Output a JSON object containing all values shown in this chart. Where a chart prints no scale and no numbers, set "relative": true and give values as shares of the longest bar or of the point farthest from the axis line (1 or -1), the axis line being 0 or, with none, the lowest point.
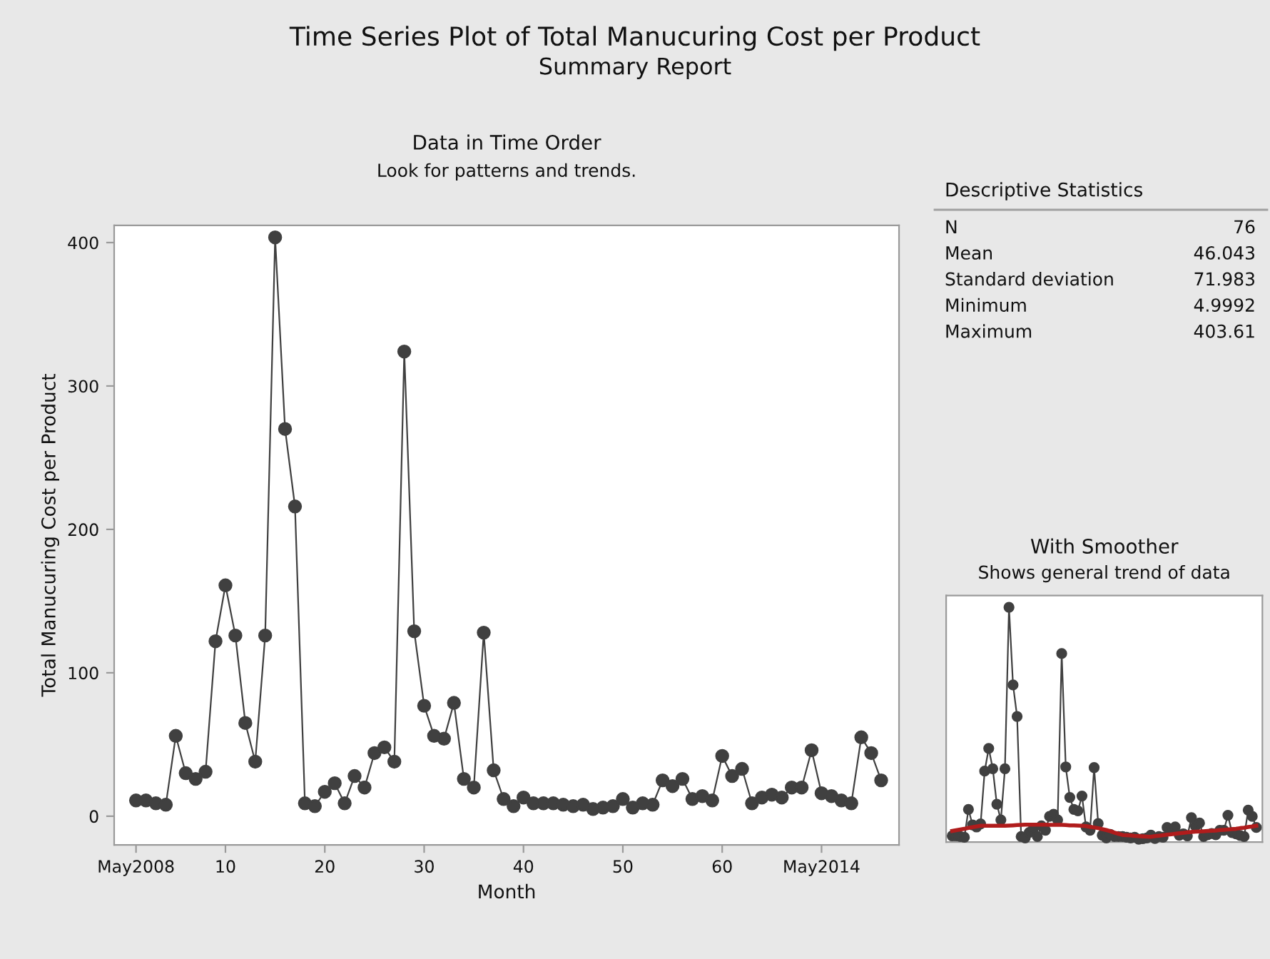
{
  "chart_data": [
    {
      "type": "other",
      "title": "Time Series Plot of Total Manucuring Cost per Product",
      "subtitle": "Summary Report"
    },
    {
      "type": "line",
      "title": "Data in Time Order",
      "subtitle": "Look for patterns and trends.",
      "xlabel": "Month",
      "ylabel": "Total Manucuring Cost per Product",
      "x": [
        1,
        2,
        3,
        4,
        5,
        6,
        7,
        8,
        9,
        10,
        11,
        12,
        13,
        14,
        15,
        16,
        17,
        18,
        19,
        20,
        21,
        22,
        23,
        24,
        25,
        26,
        27,
        28,
        29,
        30,
        31,
        32,
        33,
        34,
        35,
        36,
        37,
        38,
        39,
        40,
        41,
        42,
        43,
        44,
        45,
        46,
        47,
        48,
        49,
        50,
        51,
        52,
        53,
        54,
        55,
        56,
        57,
        58,
        59,
        60,
        61,
        62,
        63,
        64,
        65,
        66,
        67,
        68,
        69,
        70,
        71,
        72,
        73,
        74,
        75,
        76
      ],
      "series": [
        {
          "color": "#404040",
          "values": [
            11,
            11,
            9,
            8,
            56,
            30,
            26,
            31,
            122,
            161,
            126,
            65,
            38,
            126,
            403.61,
            270,
            216,
            9,
            7,
            17,
            23,
            9,
            28,
            20,
            44,
            48,
            38,
            324,
            129,
            77,
            56,
            54,
            79,
            26,
            20,
            128,
            32,
            12,
            7,
            13,
            9,
            9,
            9,
            8,
            7,
            8,
            5,
            6,
            7,
            12,
            6,
            9,
            8,
            25,
            21,
            26,
            12,
            14,
            11,
            42,
            28,
            33,
            9,
            13,
            15,
            13,
            20,
            20,
            46,
            16,
            14,
            11,
            9,
            55,
            44,
            25
          ]
        }
      ],
      "xlim": [
        -1.2,
        77.8
      ],
      "ylim": [
        -20,
        412
      ],
      "xticks": [
        {
          "value": 1,
          "label": "May2008"
        },
        10,
        20,
        30,
        40,
        50,
        60,
        {
          "value": 70,
          "label": "May2014"
        }
      ],
      "yticks": [
        0,
        100,
        200,
        300,
        400
      ],
      "marker": "circle",
      "line_style": "solid",
      "grid": false
    },
    {
      "type": "other",
      "title": "Descriptive Statistics",
      "annotations": [
        "N",
        "76",
        "Mean",
        "46.043",
        "Standard deviation",
        "71.983",
        "Minimum",
        "4.9992",
        "Maximum",
        "403.61"
      ]
    },
    {
      "type": "line",
      "title": "With Smoother",
      "subtitle": "Shows general trend of data",
      "relative": true,
      "grid": false,
      "categories": [
        null,
        null,
        null,
        null,
        null,
        null,
        null,
        null,
        null,
        null,
        null,
        null,
        null,
        null,
        null,
        null,
        null,
        null,
        null,
        null,
        null,
        null,
        null,
        null,
        null,
        null,
        null,
        null,
        null,
        null,
        null,
        null,
        null,
        null,
        null,
        null,
        null,
        null,
        null,
        null,
        null,
        null,
        null,
        null,
        null,
        null,
        null,
        null,
        null,
        null,
        null,
        null,
        null,
        null,
        null,
        null,
        null,
        null,
        null,
        null,
        null,
        null,
        null,
        null,
        null,
        null,
        null,
        null,
        null,
        null,
        null,
        null,
        null,
        null,
        null,
        null
      ],
      "series": [
        {
          "color": "#404040",
          "marker": "circle",
          "values": [
            0.026,
            0.026,
            0.023,
            0.02,
            0.139,
            0.073,
            0.064,
            0.077,
            0.302,
            0.399,
            0.312,
            0.161,
            0.094,
            0.312,
            1,
            0.669,
            0.535,
            0.023,
            0.017,
            0.041,
            0.056,
            0.023,
            0.069,
            0.05,
            0.109,
            0.118,
            0.094,
            0.803,
            0.32,
            0.19,
            0.139,
            0.133,
            0.196,
            0.064,
            0.05,
            0.317,
            0.079,
            0.029,
            0.017,
            0.032,
            0.023,
            0.023,
            0.023,
            0.02,
            0.017,
            0.02,
            0.012,
            0.014,
            0.017,
            0.029,
            0.015,
            0.023,
            0.02,
            0.062,
            0.052,
            0.064,
            0.029,
            0.035,
            0.026,
            0.104,
            0.068,
            0.081,
            0.023,
            0.031,
            0.036,
            0.031,
            0.05,
            0.05,
            0.114,
            0.04,
            0.035,
            0.028,
            0.023,
            0.136,
            0.109,
            0.062
          ]
        },
        {
          "color": "#b01c1c",
          "marker": "none",
          "values": [
            0.047,
            0.05,
            0.053,
            0.056,
            0.06,
            0.063,
            0.066,
            0.069,
            0.069,
            0.069,
            0.069,
            0.069,
            0.069,
            0.069,
            0.07,
            0.071,
            0.072,
            0.073,
            0.074,
            0.074,
            0.074,
            0.074,
            0.074,
            0.074,
            0.073,
            0.073,
            0.073,
            0.073,
            0.072,
            0.071,
            0.071,
            0.07,
            0.069,
            0.068,
            0.065,
            0.062,
            0.059,
            0.055,
            0.051,
            0.046,
            0.04,
            0.035,
            0.03,
            0.029,
            0.028,
            0.026,
            0.025,
            0.024,
            0.023,
            0.022,
            0.025,
            0.027,
            0.029,
            0.031,
            0.033,
            0.035,
            0.037,
            0.039,
            0.041,
            0.043,
            0.044,
            0.045,
            0.046,
            0.047,
            0.048,
            0.049,
            0.051,
            0.052,
            0.053,
            0.055,
            0.056,
            0.059,
            0.061,
            0.064,
            0.066,
            0.069
          ]
        }
      ]
    }
  ]
}
